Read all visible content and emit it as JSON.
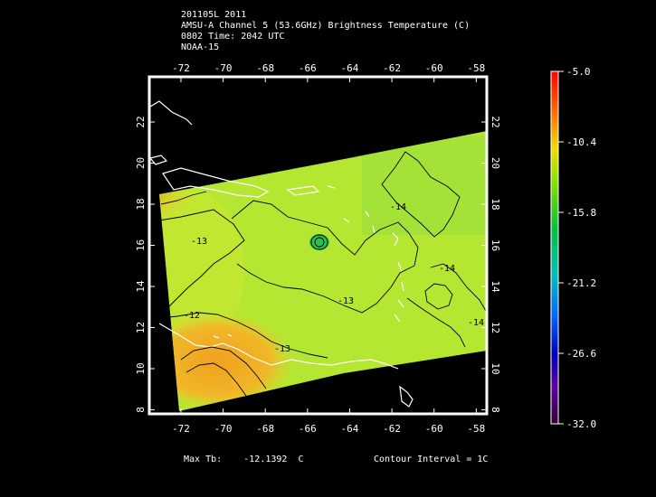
{
  "header": {
    "line1": "201105L 2011",
    "line2": "AMSU-A Channel 5 (53.6GHz) Brightness Temperature (C)",
    "line3": "0802 Time: 2042 UTC",
    "line4": "NOAA-15"
  },
  "map": {
    "lon_ticks": [
      "-72",
      "-70",
      "-68",
      "-66",
      "-64",
      "-62",
      "-60",
      "-58"
    ],
    "lat_ticks": [
      "8",
      "10",
      "12",
      "14",
      "16",
      "18",
      "20",
      "22"
    ],
    "lon_range": [
      -73.5,
      -57.5
    ],
    "lat_range": [
      7.8,
      24.2
    ],
    "contour_labels": [
      "-12",
      "-13",
      "-13",
      "-14",
      "-14",
      "-14",
      "-13"
    ]
  },
  "colorbar": {
    "tick_labels": [
      "-5.0",
      "-10.4",
      "-15.8",
      "-21.2",
      "-26.6",
      "-32.0"
    ],
    "range": [
      -32.0,
      -5.0
    ]
  },
  "footer": {
    "max_label": "Max Tb:",
    "max_value": "-12.1392",
    "max_unit": "C",
    "contour_interval": "Contour Interval = 1C"
  },
  "colors": {
    "background": "#000000",
    "swath_main": "#b4e632",
    "swath_warm": "#f0a020"
  }
}
